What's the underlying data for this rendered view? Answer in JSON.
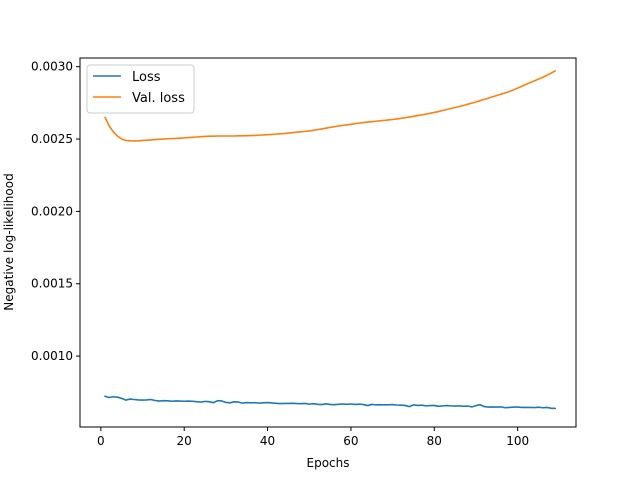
{
  "chart_data": {
    "type": "line",
    "title": "",
    "xlabel": "Epochs",
    "ylabel": "Negative log-likelihood",
    "xlim": [
      -5,
      114
    ],
    "ylim": [
      0.00051,
      0.00306
    ],
    "xticks": [
      0,
      20,
      40,
      60,
      80,
      100
    ],
    "xtick_labels": [
      "0",
      "20",
      "40",
      "60",
      "80",
      "100"
    ],
    "yticks": [
      0.001,
      0.0015,
      0.002,
      0.0025,
      0.003
    ],
    "ytick_labels": [
      "0.0010",
      "0.0015",
      "0.0020",
      "0.0025",
      "0.0030"
    ],
    "grid": false,
    "legend_position": "top-left",
    "series": [
      {
        "name": "Loss",
        "color": "#1f77b4",
        "x": [
          1,
          2,
          3,
          4,
          5,
          6,
          7,
          8,
          9,
          10,
          11,
          12,
          13,
          14,
          15,
          16,
          17,
          18,
          19,
          20,
          21,
          22,
          23,
          24,
          25,
          26,
          27,
          28,
          29,
          30,
          31,
          32,
          33,
          34,
          35,
          36,
          37,
          38,
          39,
          40,
          41,
          42,
          43,
          44,
          45,
          46,
          47,
          48,
          49,
          50,
          51,
          52,
          53,
          54,
          55,
          56,
          57,
          58,
          59,
          60,
          61,
          62,
          63,
          64,
          65,
          66,
          67,
          68,
          69,
          70,
          71,
          72,
          73,
          74,
          75,
          76,
          77,
          78,
          79,
          80,
          81,
          82,
          83,
          84,
          85,
          86,
          87,
          88,
          89,
          90,
          91,
          92,
          93,
          94,
          95,
          96,
          97,
          98,
          99,
          100,
          101,
          102,
          103,
          104,
          105,
          106,
          107,
          108,
          109
        ],
        "y": [
          0.000722,
          0.000714,
          0.000719,
          0.000716,
          0.000708,
          0.000696,
          0.000703,
          0.0007,
          0.000697,
          0.000696,
          0.000697,
          0.0007,
          0.000693,
          0.000689,
          0.000692,
          0.000691,
          0.000688,
          0.00069,
          0.000689,
          0.000688,
          0.000689,
          0.000688,
          0.000685,
          0.000682,
          0.000687,
          0.000685,
          0.000678,
          0.000692,
          0.00069,
          0.00068,
          0.000677,
          0.000684,
          0.000682,
          0.000675,
          0.000679,
          0.000677,
          0.000678,
          0.000675,
          0.000677,
          0.000679,
          0.000676,
          0.000674,
          0.000672,
          0.000673,
          0.000673,
          0.000674,
          0.000672,
          0.000671,
          0.000673,
          0.000668,
          0.000671,
          0.000667,
          0.000665,
          0.00067,
          0.000666,
          0.000664,
          0.000667,
          0.000669,
          0.000667,
          0.000669,
          0.000666,
          0.000668,
          0.000665,
          0.000658,
          0.000666,
          0.000663,
          0.000664,
          0.000663,
          0.000663,
          0.000665,
          0.000662,
          0.000661,
          0.000659,
          0.000651,
          0.000663,
          0.000659,
          0.000661,
          0.000656,
          0.000658,
          0.000659,
          0.000653,
          0.000656,
          0.000658,
          0.000656,
          0.000655,
          0.000656,
          0.000653,
          0.000655,
          0.000649,
          0.000658,
          0.000664,
          0.000651,
          0.000648,
          0.000649,
          0.000648,
          0.000649,
          0.000643,
          0.000645,
          0.000648,
          0.000648,
          0.000645,
          0.000645,
          0.000645,
          0.000644,
          0.000647,
          0.000643,
          0.000645,
          0.00064,
          0.000638
        ]
      },
      {
        "name": "Val. loss",
        "color": "#ff7f0e",
        "x": [
          1,
          2,
          3,
          4,
          5,
          6,
          7,
          8,
          9,
          10,
          11,
          12,
          13,
          14,
          15,
          16,
          17,
          18,
          19,
          20,
          21,
          22,
          23,
          24,
          25,
          26,
          27,
          28,
          29,
          30,
          31,
          32,
          33,
          34,
          35,
          36,
          37,
          38,
          39,
          40,
          41,
          42,
          43,
          44,
          45,
          46,
          47,
          48,
          49,
          50,
          51,
          52,
          53,
          54,
          55,
          56,
          57,
          58,
          59,
          60,
          61,
          62,
          63,
          64,
          65,
          66,
          67,
          68,
          69,
          70,
          71,
          72,
          73,
          74,
          75,
          76,
          77,
          78,
          79,
          80,
          81,
          82,
          83,
          84,
          85,
          86,
          87,
          88,
          89,
          90,
          91,
          92,
          93,
          94,
          95,
          96,
          97,
          98,
          99,
          100,
          101,
          102,
          103,
          104,
          105,
          106,
          107,
          108,
          109
        ],
        "y": [
          0.00265,
          0.00259,
          0.00255,
          0.00252,
          0.0025,
          0.00249,
          0.002488,
          0.002487,
          0.002488,
          0.00249,
          0.002492,
          0.002494,
          0.002496,
          0.002498,
          0.0025,
          0.002502,
          0.002503,
          0.002504,
          0.002506,
          0.002508,
          0.00251,
          0.002512,
          0.002514,
          0.002516,
          0.002518,
          0.00252,
          0.00252,
          0.002521,
          0.002521,
          0.002521,
          0.002521,
          0.002521,
          0.002522,
          0.002522,
          0.002523,
          0.002524,
          0.002525,
          0.002527,
          0.002528,
          0.00253,
          0.002532,
          0.002534,
          0.002536,
          0.002538,
          0.002541,
          0.002544,
          0.002547,
          0.00255,
          0.002553,
          0.002556,
          0.00256,
          0.002565,
          0.00257,
          0.002575,
          0.00258,
          0.002585,
          0.00259,
          0.002594,
          0.002598,
          0.002602,
          0.002606,
          0.00261,
          0.002614,
          0.002617,
          0.00262,
          0.002623,
          0.002626,
          0.002629,
          0.002632,
          0.002635,
          0.002639,
          0.002643,
          0.002647,
          0.002652,
          0.002657,
          0.002662,
          0.002667,
          0.002672,
          0.002678,
          0.002684,
          0.00269,
          0.002697,
          0.002704,
          0.002711,
          0.002718,
          0.002725,
          0.002732,
          0.00274,
          0.002748,
          0.002756,
          0.002765,
          0.002774,
          0.002783,
          0.002792,
          0.002801,
          0.00281,
          0.002819,
          0.002828,
          0.00284,
          0.002852,
          0.002865,
          0.002878,
          0.00289,
          0.002902,
          0.002914,
          0.002926,
          0.00294,
          0.002955,
          0.00297
        ]
      }
    ]
  }
}
